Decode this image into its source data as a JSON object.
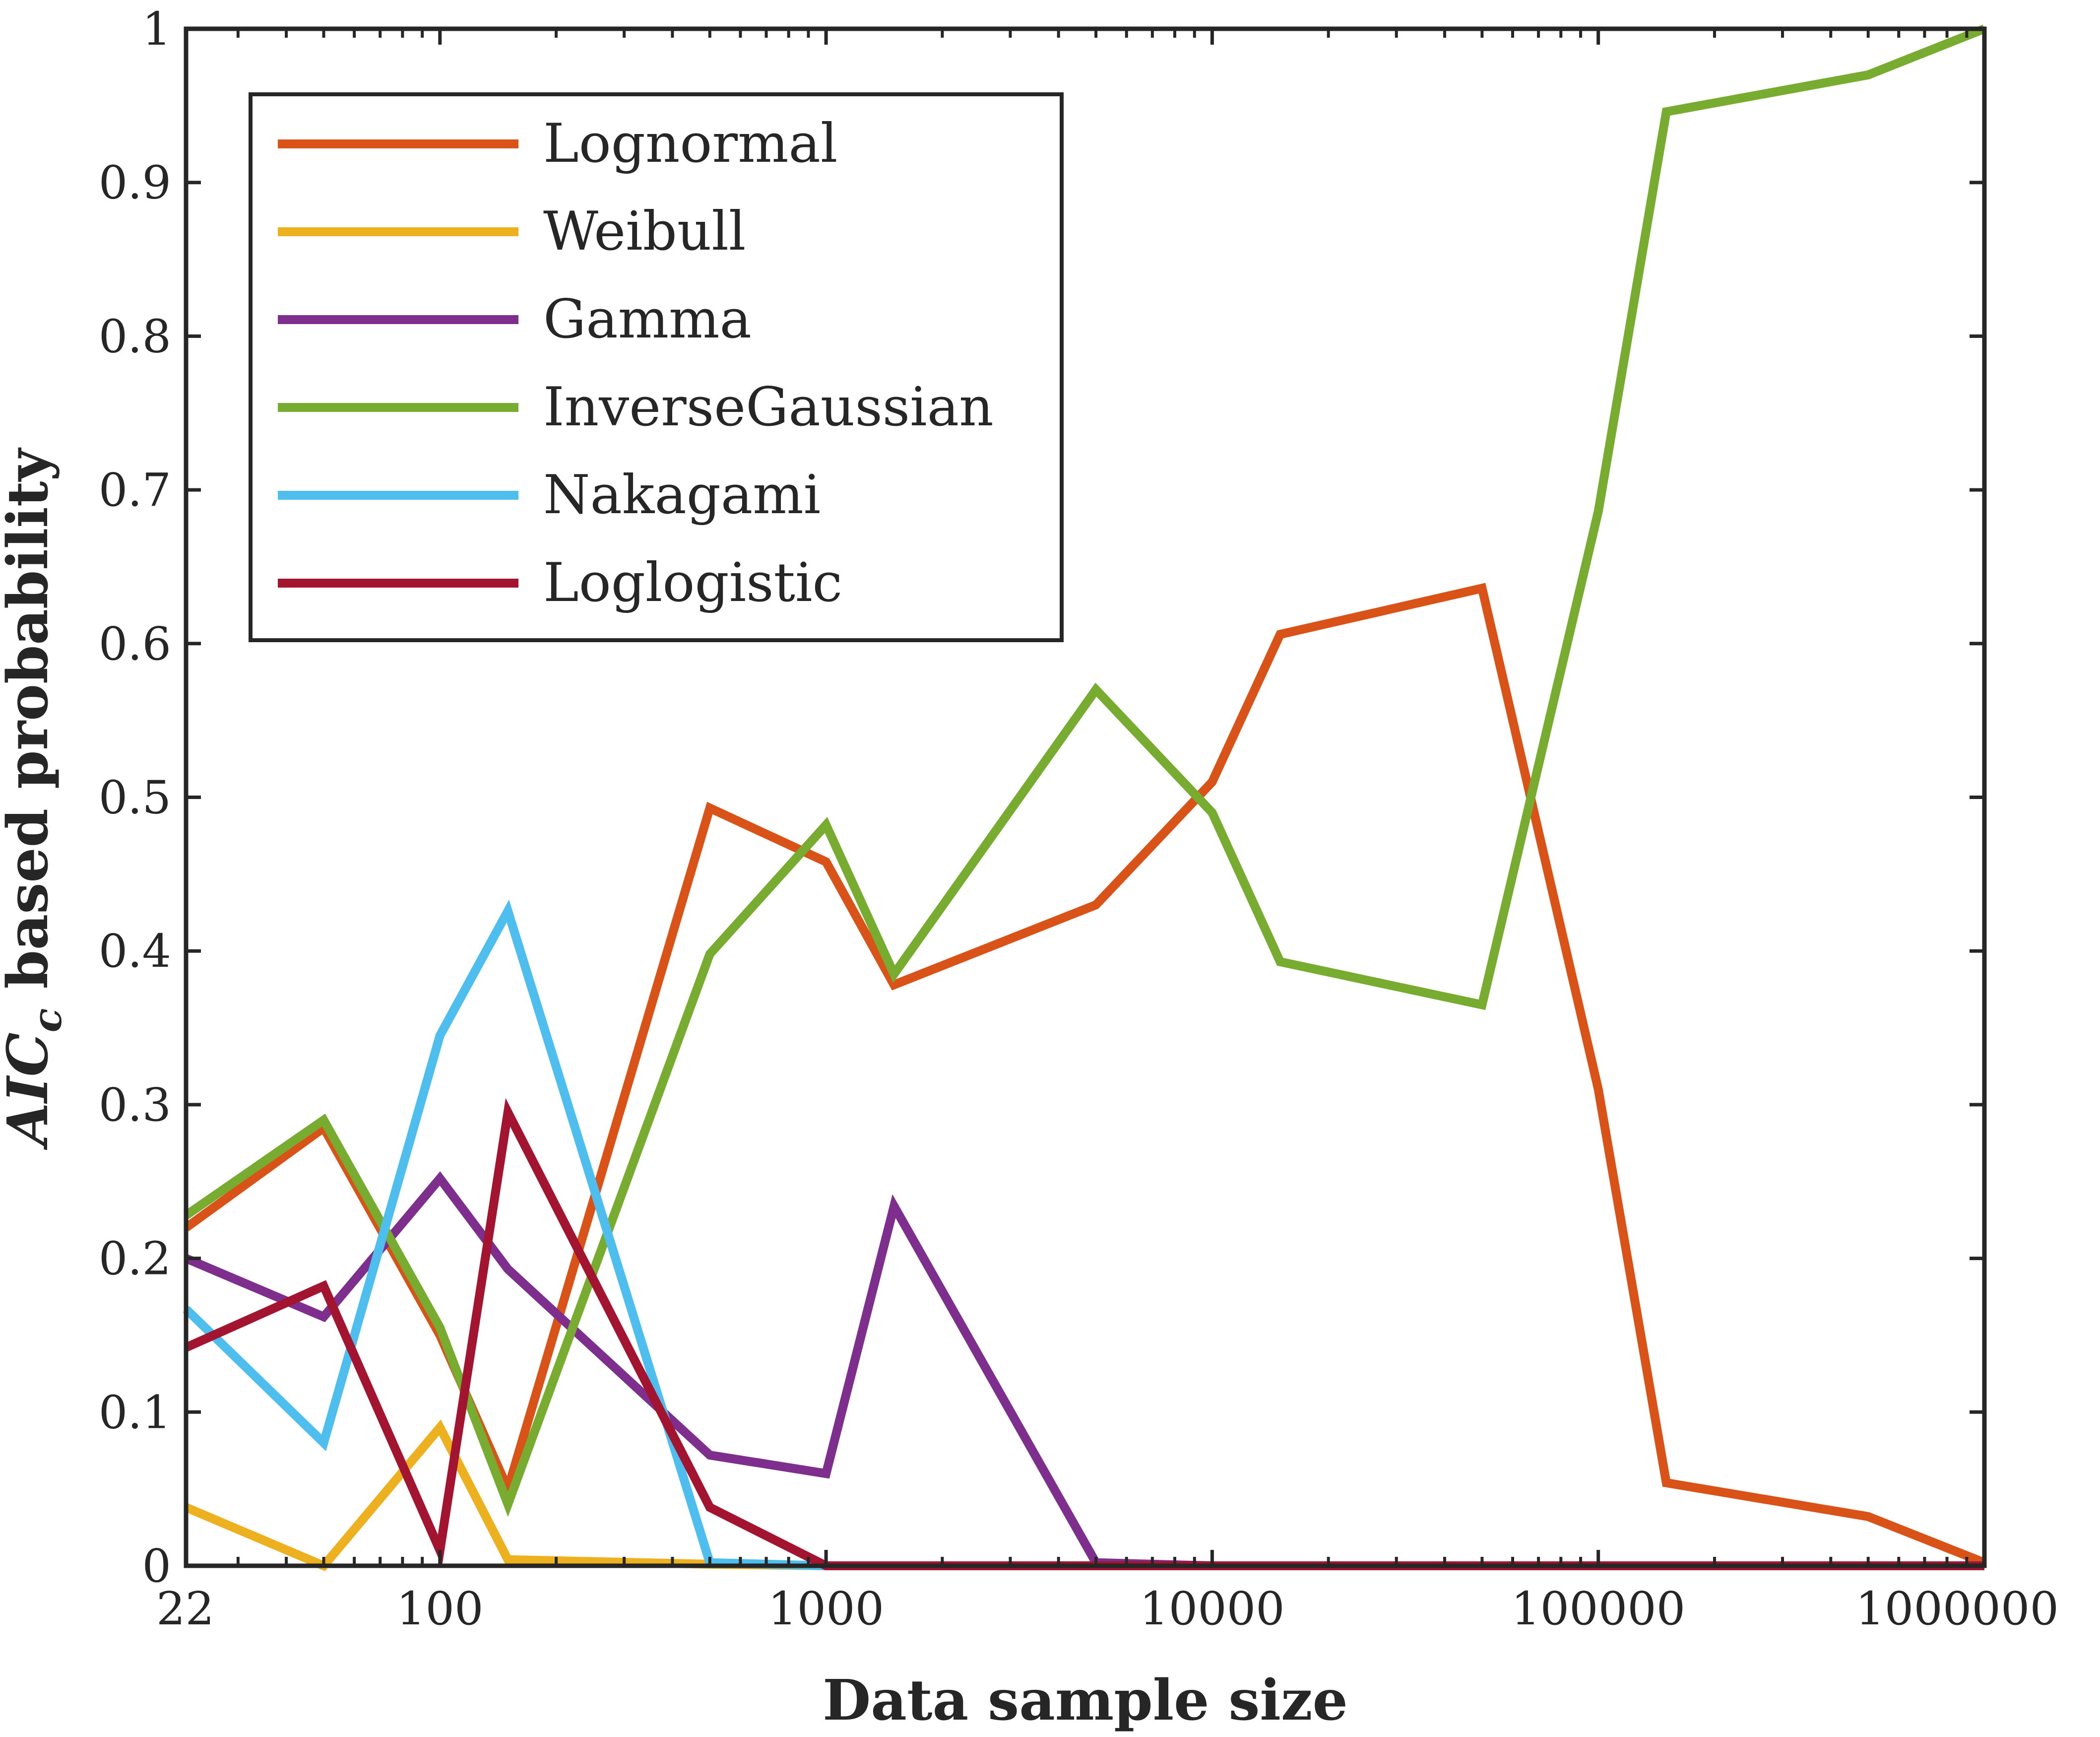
{
  "chart_data": {
    "type": "line",
    "title": "",
    "xlabel": "Data sample size",
    "ylabel": {
      "prefix": "AIC",
      "subscript": "c",
      "suffix": " based probability"
    },
    "xscale": "log",
    "xlim": [
      22,
      1000000
    ],
    "ylim": [
      0,
      1
    ],
    "grid": false,
    "legend_position": "top-left",
    "x": [
      22,
      50,
      100,
      150,
      500,
      1000,
      1500,
      5000,
      10000,
      15000,
      50000,
      100000,
      150000,
      500000,
      1000000
    ],
    "x_ticks": [
      22,
      100,
      1000,
      10000,
      100000,
      1000000
    ],
    "x_tick_labels": [
      "22",
      "100",
      "1000",
      "10000",
      "100000",
      "1000000"
    ],
    "y_ticks": [
      0,
      0.1,
      0.2,
      0.3,
      0.4,
      0.5,
      0.6,
      0.7,
      0.8,
      0.9,
      1
    ],
    "y_tick_labels": [
      "0",
      "0.1",
      "0.2",
      "0.3",
      "0.4",
      "0.5",
      "0.6",
      "0.7",
      "0.8",
      "0.9",
      "1"
    ],
    "series": [
      {
        "name": "Lognormal",
        "color": "#D95319",
        "values": [
          0.22,
          0.285,
          0.15,
          0.05,
          0.493,
          0.458,
          0.378,
          0.43,
          0.51,
          0.606,
          0.636,
          0.31,
          0.054,
          0.032,
          0.002
        ]
      },
      {
        "name": "Weibull",
        "color": "#EDB120",
        "values": [
          0.038,
          0.0,
          0.09,
          0.004,
          0.001,
          0.0,
          0.0,
          0.0,
          0.0,
          0.0,
          0.0,
          0.0,
          0.0,
          0.0,
          0.0
        ]
      },
      {
        "name": "Gamma",
        "color": "#7E2F8E",
        "values": [
          0.2,
          0.162,
          0.252,
          0.193,
          0.072,
          0.06,
          0.234,
          0.002,
          0.0,
          0.0,
          0.0,
          0.0,
          0.0,
          0.0,
          0.0
        ]
      },
      {
        "name": "InverseGaussian",
        "color": "#77AC30",
        "values": [
          0.228,
          0.29,
          0.155,
          0.04,
          0.398,
          0.482,
          0.385,
          0.57,
          0.49,
          0.393,
          0.365,
          0.686,
          0.946,
          0.97,
          1.0
        ]
      },
      {
        "name": "Nakagami",
        "color": "#4DBEEE",
        "values": [
          0.167,
          0.08,
          0.345,
          0.426,
          0.002,
          0.0,
          0.0,
          0.0,
          0.0,
          0.0,
          0.0,
          0.0,
          0.0,
          0.0,
          0.0
        ]
      },
      {
        "name": "Loglogistic",
        "color": "#A2142F",
        "values": [
          0.142,
          0.182,
          0.01,
          0.295,
          0.038,
          0.0,
          0.0,
          0.0,
          0.0,
          0.0,
          0.0,
          0.0,
          0.0,
          0.0,
          0.0
        ]
      }
    ]
  }
}
